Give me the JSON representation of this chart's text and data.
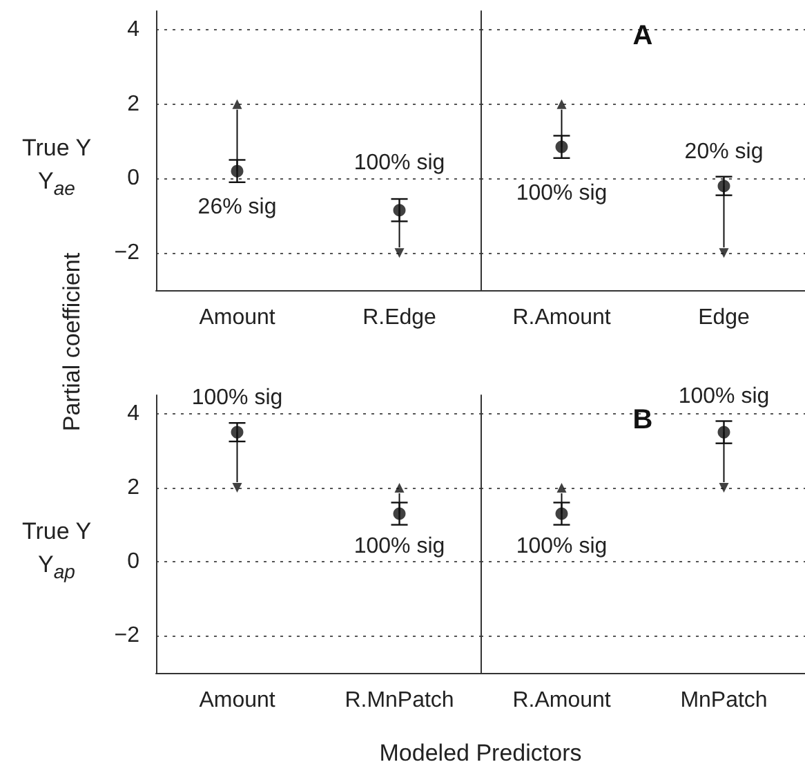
{
  "chart_data": [
    {
      "type": "scatter",
      "ylabel": "Partial coefficient",
      "categories": [
        "Amount",
        "R.Edge"
      ],
      "marker": "circle",
      "ylim": [
        -3,
        4.5
      ],
      "yticks": [
        -2,
        0,
        2,
        4
      ],
      "grid": "y",
      "series": [
        {
          "values": [
            0.2,
            -0.85
          ],
          "errors": [
            0.3,
            0.3
          ],
          "color": "#111111"
        },
        {
          "type": "scatter",
          "marker": "triangle",
          "values": [
            2,
            -2
          ],
          "color": "#111111"
        }
      ],
      "annotations": [
        "True Y\nY$_{ae}$",
        "26% sig",
        "100% sig"
      ]
    },
    {
      "type": "scatter",
      "title": "A",
      "categories": [
        "R.Amount",
        "Edge"
      ],
      "marker": "circle",
      "ylim": [
        -3,
        4.5
      ],
      "yticks": [
        -2,
        0,
        2,
        4
      ],
      "grid": "y",
      "tick_labels": "x",
      "series": [
        {
          "values": [
            0.85,
            -0.2
          ],
          "errors": [
            0.3,
            0.25
          ],
          "color": "#111111"
        },
        {
          "type": "scatter",
          "marker": "triangle",
          "values": [
            2,
            -2
          ],
          "color": "#111111"
        }
      ],
      "annotations": [
        "100% sig",
        "20% sig"
      ]
    },
    {
      "type": "scatter",
      "xlabel": "Modeled Predictors",
      "categories": [
        "Amount",
        "R.MnPatch"
      ],
      "marker": "circle",
      "ylim": [
        -3,
        4.5
      ],
      "yticks": [
        -2,
        0,
        2,
        4
      ],
      "grid": "y",
      "series": [
        {
          "values": [
            3.5,
            1.3
          ],
          "errors": [
            0.25,
            0.3
          ],
          "color": "#111111"
        },
        {
          "type": "scatter",
          "marker": "triangle",
          "values": [
            2,
            2
          ],
          "color": "#111111"
        }
      ],
      "annotations": [
        "True Y\nY$_{ap}$",
        "100% sig",
        "100% sig"
      ]
    },
    {
      "type": "scatter",
      "title": "B",
      "categories": [
        "R.Amount",
        "MnPatch"
      ],
      "marker": "circle",
      "ylim": [
        -3,
        4.5
      ],
      "yticks": [
        -2,
        0,
        2,
        4
      ],
      "grid": "y",
      "tick_labels": "x",
      "series": [
        {
          "values": [
            1.3,
            3.5
          ],
          "errors": [
            0.3,
            0.3
          ],
          "color": "#111111"
        },
        {
          "type": "scatter",
          "marker": "triangle",
          "values": [
            2,
            2
          ],
          "color": "#111111"
        }
      ],
      "annotations": [
        "100% sig",
        "100% sig"
      ]
    }
  ]
}
